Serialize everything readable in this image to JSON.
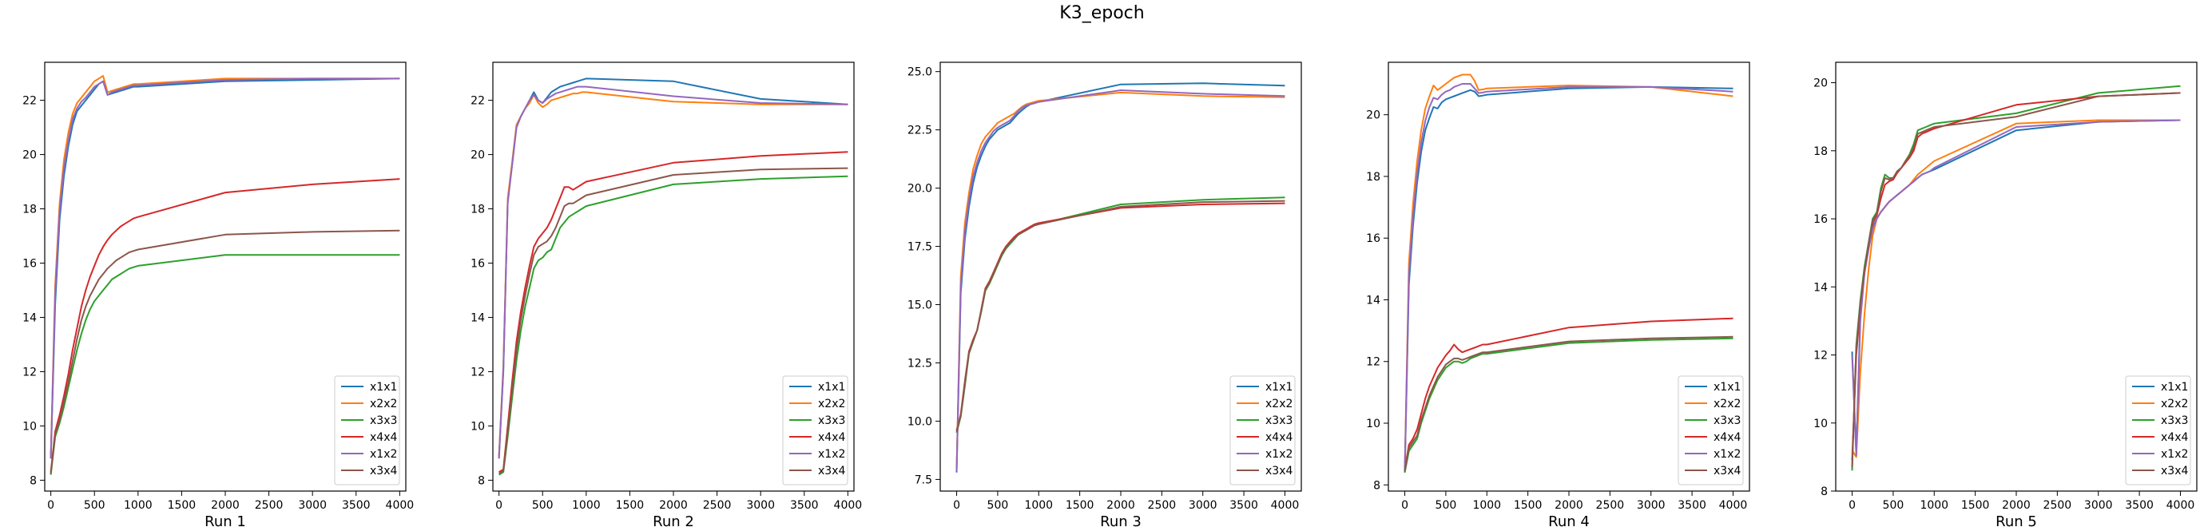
{
  "figure": {
    "title": "K3_epoch"
  },
  "series_colors": {
    "x1x1": "#1f77b4",
    "x2x2": "#ff7f0e",
    "x3x3": "#2ca02c",
    "x4x4": "#d62728",
    "x1x2": "#9467bd",
    "x3x4": "#8c564b"
  },
  "chart_data": [
    {
      "type": "line",
      "xlabel": "Run 1",
      "xlim": [
        -70,
        4070
      ],
      "ylim": [
        7.6,
        23.4
      ],
      "xticks": [
        0,
        500,
        1000,
        1500,
        2000,
        2500,
        3000,
        3500,
        4000
      ],
      "yticks": [
        8,
        10,
        12,
        14,
        16,
        18,
        20,
        22
      ],
      "legend": "lower-right",
      "x": [
        0,
        50,
        100,
        150,
        200,
        250,
        300,
        350,
        400,
        450,
        500,
        550,
        600,
        650,
        700,
        750,
        800,
        850,
        900,
        950,
        1000,
        2000,
        3000,
        4000
      ],
      "series": [
        {
          "name": "x1x1",
          "values": [
            8.8,
            14.5,
            17.6,
            19.2,
            20.3,
            21.1,
            21.6,
            21.8,
            22.0,
            22.2,
            22.4,
            22.6,
            22.7,
            22.2,
            22.25,
            22.3,
            22.35,
            22.4,
            22.45,
            22.5,
            22.5,
            22.7,
            22.75,
            22.8
          ]
        },
        {
          "name": "x2x2",
          "values": [
            8.9,
            15.2,
            18.2,
            19.8,
            20.8,
            21.5,
            21.9,
            22.1,
            22.3,
            22.5,
            22.7,
            22.8,
            22.9,
            22.3,
            22.35,
            22.4,
            22.45,
            22.5,
            22.55,
            22.6,
            22.6,
            22.8,
            22.8,
            22.8
          ]
        },
        {
          "name": "x3x3",
          "values": [
            8.2,
            9.6,
            10.1,
            10.7,
            11.4,
            12.1,
            12.8,
            13.4,
            13.9,
            14.3,
            14.6,
            14.8,
            15.0,
            15.2,
            15.4,
            15.5,
            15.6,
            15.7,
            15.8,
            15.85,
            15.9,
            16.3,
            16.3,
            16.3
          ]
        },
        {
          "name": "x4x4",
          "values": [
            8.3,
            9.8,
            10.4,
            11.1,
            11.9,
            12.8,
            13.6,
            14.4,
            15.0,
            15.5,
            15.9,
            16.3,
            16.6,
            16.85,
            17.05,
            17.2,
            17.35,
            17.45,
            17.55,
            17.65,
            17.7,
            18.6,
            18.9,
            19.1
          ]
        },
        {
          "name": "x1x2",
          "values": [
            8.8,
            14.9,
            17.9,
            19.5,
            20.5,
            21.3,
            21.7,
            21.95,
            22.1,
            22.3,
            22.5,
            22.6,
            22.7,
            22.2,
            22.3,
            22.35,
            22.4,
            22.45,
            22.5,
            22.55,
            22.55,
            22.75,
            22.8,
            22.8
          ]
        },
        {
          "name": "x3x4",
          "values": [
            8.25,
            9.7,
            10.2,
            10.9,
            11.6,
            12.4,
            13.2,
            13.9,
            14.4,
            14.8,
            15.1,
            15.4,
            15.6,
            15.8,
            15.95,
            16.1,
            16.2,
            16.3,
            16.4,
            16.45,
            16.5,
            17.05,
            17.15,
            17.2
          ]
        }
      ]
    },
    {
      "type": "line",
      "xlabel": "Run 2",
      "xlim": [
        -70,
        4070
      ],
      "ylim": [
        7.6,
        23.4
      ],
      "xticks": [
        0,
        500,
        1000,
        1500,
        2000,
        2500,
        3000,
        3500,
        4000
      ],
      "yticks": [
        8,
        10,
        12,
        14,
        16,
        18,
        20,
        22
      ],
      "legend": "lower-right",
      "x": [
        0,
        50,
        100,
        150,
        200,
        250,
        300,
        350,
        400,
        450,
        500,
        550,
        600,
        650,
        700,
        750,
        800,
        850,
        900,
        950,
        1000,
        2000,
        3000,
        4000
      ],
      "series": [
        {
          "name": "x1x1",
          "values": [
            8.8,
            12.0,
            18.3,
            19.6,
            21.0,
            21.4,
            21.7,
            22.0,
            22.3,
            22.0,
            21.9,
            22.1,
            22.3,
            22.4,
            22.5,
            22.55,
            22.6,
            22.65,
            22.7,
            22.75,
            22.8,
            22.7,
            22.05,
            21.85
          ]
        },
        {
          "name": "x2x2",
          "values": [
            8.9,
            12.2,
            18.4,
            19.7,
            21.1,
            21.4,
            21.7,
            21.9,
            22.2,
            21.9,
            21.75,
            21.85,
            22.0,
            22.05,
            22.1,
            22.15,
            22.2,
            22.25,
            22.25,
            22.3,
            22.3,
            21.95,
            21.85,
            21.85
          ]
        },
        {
          "name": "x3x3",
          "values": [
            8.2,
            8.3,
            9.6,
            11.0,
            12.4,
            13.5,
            14.4,
            15.1,
            15.8,
            16.1,
            16.2,
            16.4,
            16.5,
            16.9,
            17.3,
            17.5,
            17.7,
            17.8,
            17.9,
            18.0,
            18.1,
            18.9,
            19.1,
            19.2
          ]
        },
        {
          "name": "x4x4",
          "values": [
            8.3,
            8.4,
            10.0,
            11.6,
            13.1,
            14.2,
            15.1,
            15.9,
            16.6,
            16.9,
            17.1,
            17.3,
            17.6,
            18.0,
            18.4,
            18.8,
            18.8,
            18.7,
            18.8,
            18.9,
            19.0,
            19.7,
            19.95,
            20.1
          ]
        },
        {
          "name": "x1x2",
          "values": [
            8.8,
            12.1,
            18.2,
            19.6,
            21.0,
            21.4,
            21.7,
            22.0,
            22.2,
            22.0,
            21.9,
            22.05,
            22.15,
            22.25,
            22.3,
            22.35,
            22.4,
            22.45,
            22.5,
            22.5,
            22.5,
            22.15,
            21.9,
            21.85
          ]
        },
        {
          "name": "x3x4",
          "values": [
            8.25,
            8.35,
            9.8,
            11.3,
            12.8,
            13.9,
            14.8,
            15.6,
            16.3,
            16.6,
            16.7,
            16.8,
            17.0,
            17.3,
            17.7,
            18.1,
            18.2,
            18.2,
            18.3,
            18.4,
            18.5,
            19.25,
            19.45,
            19.5
          ]
        }
      ]
    },
    {
      "type": "line",
      "xlabel": "Run 3",
      "xlim": [
        -200,
        4200
      ],
      "ylim": [
        7.0,
        25.4
      ],
      "xticks": [
        0,
        500,
        1000,
        1500,
        2000,
        2500,
        3000,
        3500,
        4000
      ],
      "yticks": [
        7.5,
        10.0,
        12.5,
        15.0,
        17.5,
        20.0,
        22.5,
        25.0
      ],
      "legend": "lower-right",
      "x": [
        0,
        50,
        100,
        150,
        200,
        250,
        300,
        350,
        400,
        450,
        500,
        550,
        600,
        650,
        700,
        750,
        800,
        850,
        900,
        950,
        1000,
        2000,
        3000,
        4000
      ],
      "series": [
        {
          "name": "x1x1",
          "values": [
            7.8,
            15.5,
            17.8,
            19.2,
            20.2,
            20.9,
            21.4,
            21.8,
            22.1,
            22.3,
            22.5,
            22.6,
            22.7,
            22.8,
            23.0,
            23.2,
            23.35,
            23.5,
            23.6,
            23.65,
            23.7,
            24.45,
            24.5,
            24.4
          ]
        },
        {
          "name": "x2x2",
          "values": [
            7.9,
            16.2,
            18.5,
            19.8,
            20.8,
            21.4,
            21.9,
            22.2,
            22.4,
            22.6,
            22.8,
            22.9,
            23.0,
            23.1,
            23.2,
            23.35,
            23.5,
            23.6,
            23.65,
            23.7,
            23.75,
            24.1,
            23.95,
            23.9
          ]
        },
        {
          "name": "x3x3",
          "values": [
            9.5,
            10.2,
            11.5,
            12.9,
            13.4,
            13.9,
            14.7,
            15.6,
            15.9,
            16.3,
            16.7,
            17.1,
            17.4,
            17.6,
            17.8,
            18.0,
            18.1,
            18.2,
            18.35,
            18.4,
            18.45,
            19.3,
            19.5,
            19.6
          ]
        },
        {
          "name": "x4x4",
          "values": [
            9.6,
            10.3,
            11.7,
            13.0,
            13.5,
            13.9,
            14.8,
            15.7,
            16.0,
            16.4,
            16.8,
            17.2,
            17.5,
            17.7,
            17.9,
            18.05,
            18.15,
            18.25,
            18.35,
            18.45,
            18.5,
            19.15,
            19.3,
            19.35
          ]
        },
        {
          "name": "x1x2",
          "values": [
            7.85,
            15.8,
            18.1,
            19.5,
            20.5,
            21.1,
            21.6,
            21.95,
            22.2,
            22.45,
            22.6,
            22.7,
            22.8,
            22.9,
            23.1,
            23.3,
            23.45,
            23.55,
            23.6,
            23.65,
            23.7,
            24.2,
            24.05,
            23.95
          ]
        },
        {
          "name": "x3x4",
          "values": [
            9.55,
            10.25,
            11.6,
            12.95,
            13.45,
            13.9,
            14.75,
            15.65,
            15.95,
            16.35,
            16.75,
            17.15,
            17.45,
            17.65,
            17.85,
            18.0,
            18.1,
            18.2,
            18.3,
            18.4,
            18.45,
            19.2,
            19.4,
            19.45
          ]
        }
      ]
    },
    {
      "type": "line",
      "xlabel": "Run 4",
      "xlim": [
        -200,
        4200
      ],
      "ylim": [
        7.8,
        21.7
      ],
      "xticks": [
        0,
        500,
        1000,
        1500,
        2000,
        2500,
        3000,
        3500,
        4000
      ],
      "yticks": [
        8,
        10,
        12,
        14,
        16,
        18,
        20
      ],
      "legend": "lower-right",
      "x": [
        0,
        50,
        100,
        150,
        200,
        250,
        300,
        350,
        400,
        450,
        500,
        550,
        600,
        650,
        700,
        750,
        800,
        850,
        900,
        950,
        1000,
        2000,
        3000,
        4000
      ],
      "series": [
        {
          "name": "x1x1",
          "values": [
            8.4,
            14.5,
            16.4,
            17.8,
            18.8,
            19.5,
            19.9,
            20.25,
            20.2,
            20.4,
            20.5,
            20.55,
            20.6,
            20.65,
            20.7,
            20.75,
            20.8,
            20.75,
            20.6,
            20.62,
            20.65,
            20.85,
            20.9,
            20.85
          ]
        },
        {
          "name": "x2x2",
          "values": [
            8.5,
            15.2,
            17.1,
            18.5,
            19.5,
            20.2,
            20.6,
            20.95,
            20.8,
            20.9,
            21.0,
            21.1,
            21.2,
            21.25,
            21.3,
            21.3,
            21.3,
            21.1,
            20.8,
            20.82,
            20.85,
            20.95,
            20.9,
            20.6
          ]
        },
        {
          "name": "x3x3",
          "values": [
            8.4,
            9.1,
            9.3,
            9.5,
            10.0,
            10.4,
            10.8,
            11.1,
            11.4,
            11.6,
            11.8,
            11.9,
            12.0,
            12.0,
            11.95,
            12.0,
            12.1,
            12.15,
            12.2,
            12.25,
            12.25,
            12.6,
            12.7,
            12.75
          ]
        },
        {
          "name": "x4x4",
          "values": [
            8.5,
            9.3,
            9.5,
            9.8,
            10.3,
            10.8,
            11.2,
            11.5,
            11.8,
            12.0,
            12.2,
            12.35,
            12.55,
            12.4,
            12.3,
            12.35,
            12.4,
            12.45,
            12.5,
            12.55,
            12.55,
            13.1,
            13.3,
            13.4
          ]
        },
        {
          "name": "x1x2",
          "values": [
            8.45,
            14.8,
            16.7,
            18.1,
            19.1,
            19.8,
            20.25,
            20.55,
            20.5,
            20.65,
            20.75,
            20.8,
            20.9,
            20.95,
            21.0,
            21.0,
            21.0,
            20.85,
            20.7,
            20.72,
            20.75,
            20.9,
            20.9,
            20.75
          ]
        },
        {
          "name": "x3x4",
          "values": [
            8.45,
            9.2,
            9.4,
            9.6,
            10.1,
            10.5,
            10.9,
            11.2,
            11.5,
            11.7,
            11.9,
            12.0,
            12.1,
            12.1,
            12.05,
            12.1,
            12.15,
            12.2,
            12.25,
            12.3,
            12.3,
            12.65,
            12.75,
            12.8
          ]
        }
      ]
    },
    {
      "type": "line",
      "xlabel": "Run 5",
      "xlim": [
        -200,
        4200
      ],
      "ylim": [
        8.0,
        20.6
      ],
      "xticks": [
        0,
        500,
        1000,
        1500,
        2000,
        2500,
        3000,
        3500,
        4000
      ],
      "yticks": [
        8,
        10,
        12,
        14,
        16,
        18,
        20
      ],
      "legend": "lower-right",
      "x": [
        0,
        50,
        100,
        150,
        200,
        250,
        300,
        350,
        400,
        450,
        500,
        550,
        600,
        650,
        700,
        750,
        800,
        850,
        900,
        950,
        1000,
        2000,
        3000,
        4000
      ],
      "series": [
        {
          "name": "x1x1",
          "values": [
            12.1,
            9.1,
            13.2,
            14.5,
            15.2,
            15.8,
            16.0,
            16.2,
            16.35,
            16.5,
            16.6,
            16.7,
            16.8,
            16.9,
            17.0,
            17.1,
            17.2,
            17.3,
            17.35,
            17.4,
            17.45,
            18.6,
            18.85,
            18.9
          ]
        },
        {
          "name": "x2x2",
          "values": [
            9.2,
            9.0,
            11.5,
            13.2,
            14.5,
            15.5,
            16.0,
            16.2,
            16.35,
            16.5,
            16.6,
            16.7,
            16.8,
            16.9,
            17.0,
            17.15,
            17.3,
            17.4,
            17.5,
            17.6,
            17.7,
            18.8,
            18.9,
            18.9
          ]
        },
        {
          "name": "x3x3",
          "values": [
            8.6,
            12.3,
            13.6,
            14.6,
            15.3,
            16.0,
            16.2,
            16.9,
            17.3,
            17.2,
            17.2,
            17.4,
            17.5,
            17.7,
            17.9,
            18.2,
            18.6,
            18.65,
            18.7,
            18.75,
            18.8,
            19.1,
            19.7,
            19.9
          ]
        },
        {
          "name": "x4x4",
          "values": [
            8.9,
            12.0,
            13.4,
            14.4,
            15.2,
            15.9,
            16.1,
            16.6,
            17.0,
            17.1,
            17.15,
            17.35,
            17.5,
            17.65,
            17.8,
            18.0,
            18.4,
            18.5,
            18.55,
            18.6,
            18.65,
            19.35,
            19.6,
            19.7
          ]
        },
        {
          "name": "x1x2",
          "values": [
            12.0,
            9.05,
            13.0,
            14.4,
            15.1,
            15.7,
            16.0,
            16.2,
            16.35,
            16.5,
            16.6,
            16.7,
            16.8,
            16.9,
            17.0,
            17.1,
            17.2,
            17.3,
            17.35,
            17.4,
            17.5,
            18.7,
            18.85,
            18.9
          ]
        },
        {
          "name": "x3x4",
          "values": [
            8.7,
            12.2,
            13.5,
            14.5,
            15.25,
            15.95,
            16.15,
            16.8,
            17.2,
            17.15,
            17.2,
            17.4,
            17.5,
            17.7,
            17.85,
            18.1,
            18.5,
            18.55,
            18.6,
            18.65,
            18.7,
            19.0,
            19.6,
            19.7
          ]
        }
      ]
    }
  ]
}
